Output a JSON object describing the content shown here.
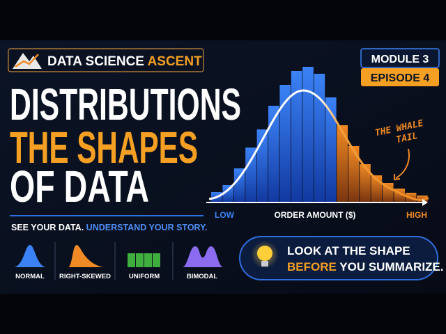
{
  "brand": {
    "name_main": "DATA SCIENCE",
    "name_accent": "ASCENT"
  },
  "badge": {
    "module": "MODULE 3",
    "episode": "EPISODE 4"
  },
  "headline": {
    "line1": "DISTRIBUTIONS",
    "line2": "THE SHAPES",
    "line3": "OF DATA"
  },
  "tagline": {
    "part1": "SEE YOUR DATA.",
    "part2": "UNDERSTAND YOUR STORY."
  },
  "illustration": {
    "low_label": "LOW",
    "axis_label": "ORDER AMOUNT ($)",
    "high_label": "HIGH",
    "annotation": [
      "THE WHALE",
      "TAIL"
    ]
  },
  "shapes": [
    "NORMAL",
    "RIGHT-SKEWED",
    "UNIFORM",
    "BIMODAL"
  ],
  "callout": {
    "line1": "LOOK AT THE SHAPE",
    "line2_accent": "BEFORE",
    "line2_rest": "YOU SUMMARIZE."
  }
}
